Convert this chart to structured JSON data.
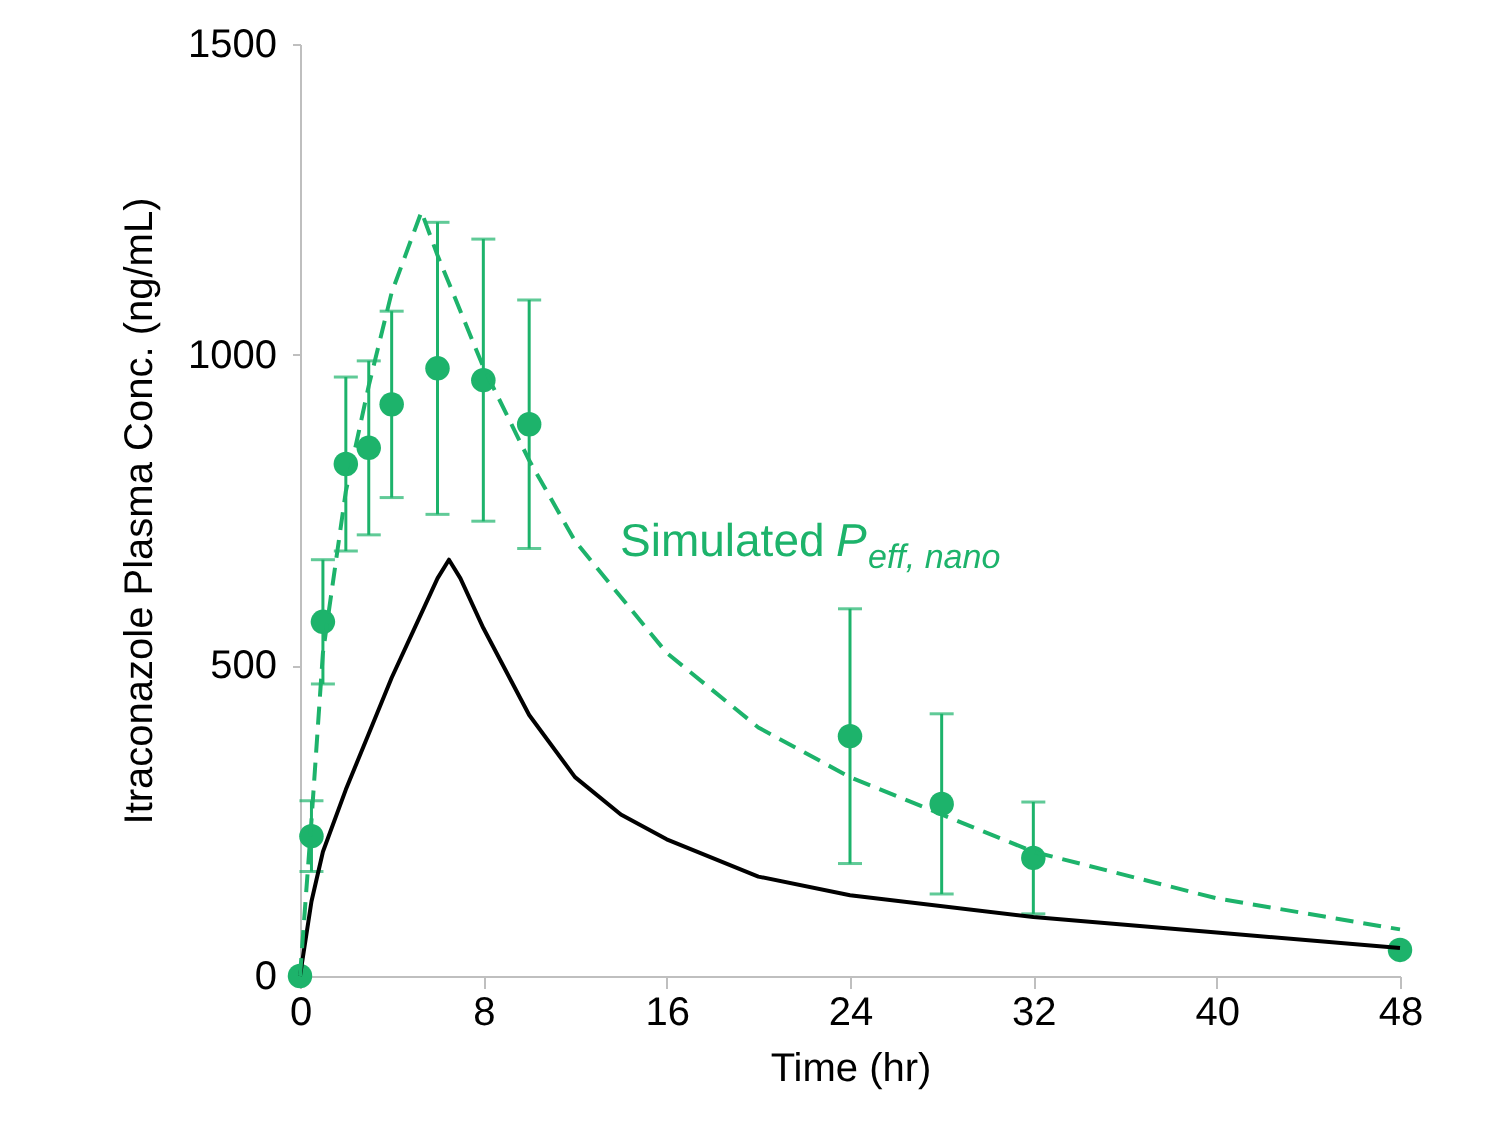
{
  "chart_data": {
    "type": "scatter",
    "xlabel": "Time (hr)",
    "ylabel": "Itraconazole Plasma Conc. (ng/mL)",
    "xlim": [
      0,
      48
    ],
    "xticks": [
      0,
      8,
      16,
      24,
      32,
      40,
      48
    ],
    "ylim": [
      0,
      1500
    ],
    "yticks": [
      0,
      500,
      1000,
      1500
    ],
    "grid": false,
    "annotations": [
      "Simulated P$_{eff, nano}$"
    ],
    "series": [
      {
        "type": "line",
        "color": "#000000",
        "line_style": "solid",
        "marker": "none",
        "x": [
          0,
          0.5,
          1,
          2,
          3,
          4,
          5,
          6,
          6.5,
          7,
          8,
          10,
          12,
          14,
          16,
          20,
          24,
          32,
          40,
          48
        ],
        "values": [
          0,
          120,
          200,
          300,
          390,
          480,
          560,
          640,
          670,
          640,
          560,
          420,
          320,
          260,
          220,
          160,
          130,
          95,
          70,
          45
        ]
      },
      {
        "type": "line",
        "color": "#1db36b",
        "line_style": "dashed",
        "marker": "none",
        "x": [
          0,
          0.5,
          1,
          2,
          3,
          4,
          5.3,
          6,
          8,
          10,
          12,
          16,
          20,
          24,
          32,
          40,
          48
        ],
        "values": [
          0,
          250,
          520,
          780,
          950,
          1100,
          1230,
          1160,
          980,
          830,
          700,
          520,
          400,
          320,
          200,
          125,
          75
        ]
      },
      {
        "color": "#1db36b",
        "marker": "circle",
        "x": [
          0.5,
          1,
          2,
          4,
          6,
          8,
          10,
          24,
          28,
          32,
          48
        ],
        "values": [
          225,
          570,
          824,
          920,
          978,
          959,
          888,
          386,
          277,
          190,
          42
        ],
        "errors": [
          57,
          100,
          140,
          150,
          235,
          227,
          200,
          205,
          145,
          90,
          null
        ]
      },
      {
        "color": "#1db36b",
        "marker": "circle",
        "x": [
          0,
          3
        ],
        "values": [
          0,
          850
        ],
        "errors": [
          null,
          140
        ]
      }
    ]
  }
}
